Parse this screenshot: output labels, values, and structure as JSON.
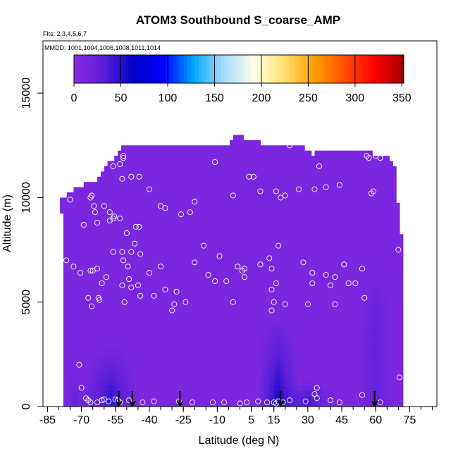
{
  "chart_data": {
    "type": "heatmap",
    "title": "ATOM3 Southbound S_coarse_AMP",
    "flights_label": "Flts: 2,3,4,5,6,7",
    "dates_label": "MMDD: 1001,1004,1006,1008,1011,1014",
    "xlabel": "Latitude (deg N)",
    "ylabel": "Altitude (m)",
    "xlim": [
      -87,
      87
    ],
    "ylim": [
      0,
      17500
    ],
    "xticks": [
      -85,
      -70,
      -55,
      -40,
      -25,
      -10,
      5,
      15,
      30,
      45,
      60,
      75
    ],
    "xtick_labels": [
      "-85",
      "-70",
      "-55",
      "-40",
      "-25",
      "-10",
      "5",
      "15",
      "30",
      "45",
      "60",
      "75"
    ],
    "yticks": [
      0,
      5000,
      10000,
      15000
    ],
    "ytick_labels": [
      "0",
      "5000",
      "10000",
      "15000"
    ],
    "colorbar": {
      "range": [
        0,
        352
      ],
      "ticks": [
        0,
        50,
        100,
        150,
        200,
        250,
        300,
        350
      ],
      "tick_labels": [
        "0",
        "50",
        "100",
        "150",
        "200",
        "250",
        "300",
        "350"
      ],
      "stops": [
        "#8a2be2",
        "#5a1fd8",
        "#0000c8",
        "#0000ff",
        "#00a8ff",
        "#a8dcff",
        "#ffffe8",
        "#ffe070",
        "#ffa000",
        "#ff5000",
        "#ff0000",
        "#a80000"
      ]
    },
    "field": {
      "background_value": 10,
      "outline": [
        [
          -78,
          0
        ],
        [
          -78,
          7300
        ],
        [
          -79,
          9900
        ],
        [
          -75,
          10200
        ],
        [
          -72,
          10500
        ],
        [
          -64,
          10800
        ],
        [
          -60,
          11400
        ],
        [
          -56,
          11900
        ],
        [
          -52,
          12500
        ],
        [
          -6,
          12500
        ],
        [
          -2,
          13000
        ],
        [
          12,
          12500
        ],
        [
          26,
          12500
        ],
        [
          32,
          12100
        ],
        [
          40,
          12300
        ],
        [
          56,
          12200
        ],
        [
          68,
          11800
        ],
        [
          70,
          9500
        ],
        [
          72,
          7400
        ],
        [
          72,
          0
        ]
      ],
      "enhancements": [
        {
          "lat": -57,
          "alt": 600,
          "lat_half_width": 12,
          "alt_top": 3000,
          "value": 45
        },
        {
          "lat": 17,
          "alt": 500,
          "lat_half_width": 9,
          "alt_top": 4500,
          "value": 55
        },
        {
          "lat": 30,
          "alt": 400,
          "lat_half_width": 10,
          "alt_top": 1200,
          "value": 40
        },
        {
          "lat": 60,
          "alt": 4000,
          "lat_half_width": 8,
          "alt_top": 7500,
          "value": 25
        },
        {
          "lat": -73,
          "alt": 300,
          "lat_half_width": 4,
          "alt_top": 1800,
          "value": 25
        }
      ]
    },
    "sample_points": [
      [
        -73.5,
        6700
      ],
      [
        -75,
        9900
      ],
      [
        -76.7,
        7000
      ],
      [
        -69,
        8700
      ],
      [
        -70.5,
        6400
      ],
      [
        -66,
        10000
      ],
      [
        -65.5,
        10100
      ],
      [
        -64.5,
        9600
      ],
      [
        -64,
        9300
      ],
      [
        -63,
        8800
      ],
      [
        -66,
        6500
      ],
      [
        -65,
        6500
      ],
      [
        -63,
        6600
      ],
      [
        -67,
        5200
      ],
      [
        -65.5,
        4800
      ],
      [
        -62,
        5100
      ],
      [
        -62.5,
        5200
      ],
      [
        -61,
        5900
      ],
      [
        -59,
        6200
      ],
      [
        -56,
        7400
      ],
      [
        -60,
        9600
      ],
      [
        -57.5,
        9300
      ],
      [
        -57.5,
        8900
      ],
      [
        -56,
        9000
      ],
      [
        -55.5,
        9100
      ],
      [
        -53,
        9000
      ],
      [
        -52,
        7400
      ],
      [
        -51.5,
        7000
      ],
      [
        -49.5,
        6700
      ],
      [
        -48,
        7400
      ],
      [
        -46.5,
        7800
      ],
      [
        -46,
        8600
      ],
      [
        -44.5,
        8600
      ],
      [
        -50,
        8300
      ],
      [
        -52,
        5800
      ],
      [
        -51,
        5000
      ],
      [
        -49,
        6100
      ],
      [
        -48,
        5700
      ],
      [
        -45,
        5800
      ],
      [
        -44,
        5300
      ],
      [
        -44,
        7300
      ],
      [
        -40,
        6400
      ],
      [
        -56,
        11500
      ],
      [
        -53,
        11600
      ],
      [
        -51.5,
        11900
      ],
      [
        -52,
        10900
      ],
      [
        -51.5,
        12000
      ],
      [
        -48,
        11000
      ],
      [
        -44.5,
        11000
      ],
      [
        -40,
        10400
      ],
      [
        -35,
        9600
      ],
      [
        -33,
        9500
      ],
      [
        -26,
        9200
      ],
      [
        -22,
        9300
      ],
      [
        -20,
        9800
      ],
      [
        -16,
        7700
      ],
      [
        -14,
        6300
      ],
      [
        -11,
        11700
      ],
      [
        -11,
        6000
      ],
      [
        -9,
        7200
      ],
      [
        -6,
        6000
      ],
      [
        -3,
        10100
      ],
      [
        -3,
        5000
      ],
      [
        -1,
        6700
      ],
      [
        1,
        6500
      ],
      [
        2,
        6200
      ],
      [
        2,
        6600
      ],
      [
        4,
        11000
      ],
      [
        6,
        11000
      ],
      [
        9,
        6800
      ],
      [
        9,
        10300
      ],
      [
        13,
        7100
      ],
      [
        14,
        6600
      ],
      [
        14,
        5600
      ],
      [
        14,
        4600
      ],
      [
        15,
        5000
      ],
      [
        16,
        5900
      ],
      [
        16,
        10300
      ],
      [
        17,
        7700
      ],
      [
        18,
        10000
      ],
      [
        20,
        4900
      ],
      [
        20,
        10100
      ],
      [
        22,
        12500
      ],
      [
        26,
        10400
      ],
      [
        28,
        6900
      ],
      [
        30,
        4900
      ],
      [
        32,
        5900
      ],
      [
        32,
        6400
      ],
      [
        33,
        10400
      ],
      [
        35,
        11500
      ],
      [
        38,
        10500
      ],
      [
        38,
        6300
      ],
      [
        40,
        5800
      ],
      [
        42,
        6200
      ],
      [
        42,
        4900
      ],
      [
        44,
        10600
      ],
      [
        46,
        6800
      ],
      [
        48,
        5900
      ],
      [
        51,
        5900
      ],
      [
        54,
        6600
      ],
      [
        55,
        5200
      ],
      [
        56,
        12000
      ],
      [
        57,
        11900
      ],
      [
        58,
        10200
      ],
      [
        59,
        10300
      ],
      [
        60,
        12000
      ],
      [
        62,
        11900
      ],
      [
        70,
        7500
      ],
      [
        70.5,
        1400
      ],
      [
        -38,
        5300
      ],
      [
        -35,
        6700
      ],
      [
        -33,
        5600
      ],
      [
        -30,
        4600
      ],
      [
        -29,
        4900
      ],
      [
        -28,
        5500
      ],
      [
        -24,
        5000
      ],
      [
        -20,
        6900
      ],
      [
        -71,
        2000
      ],
      [
        -70,
        900
      ],
      [
        -68,
        400
      ],
      [
        -67,
        300
      ],
      [
        -66,
        200
      ],
      [
        -63,
        200
      ],
      [
        -61,
        300
      ],
      [
        -60,
        350
      ],
      [
        -58,
        250
      ],
      [
        -55,
        350
      ],
      [
        -54,
        300
      ],
      [
        -53,
        200
      ],
      [
        -49,
        300
      ],
      [
        -43,
        200
      ],
      [
        -38,
        250
      ],
      [
        -27,
        250
      ],
      [
        -21,
        200
      ],
      [
        -12,
        200
      ],
      [
        -7,
        200
      ],
      [
        0,
        150
      ],
      [
        3,
        200
      ],
      [
        8,
        250
      ],
      [
        12,
        200
      ],
      [
        15,
        200
      ],
      [
        16,
        150
      ],
      [
        17,
        250
      ],
      [
        19,
        200
      ],
      [
        22,
        300
      ],
      [
        29,
        250
      ],
      [
        33,
        600
      ],
      [
        34,
        900
      ],
      [
        34,
        400
      ],
      [
        40,
        300
      ],
      [
        44,
        200
      ],
      [
        54,
        550
      ],
      [
        62,
        200
      ]
    ],
    "arrows": [
      -53.5,
      -47.5,
      -26.5,
      18,
      59.5
    ]
  }
}
